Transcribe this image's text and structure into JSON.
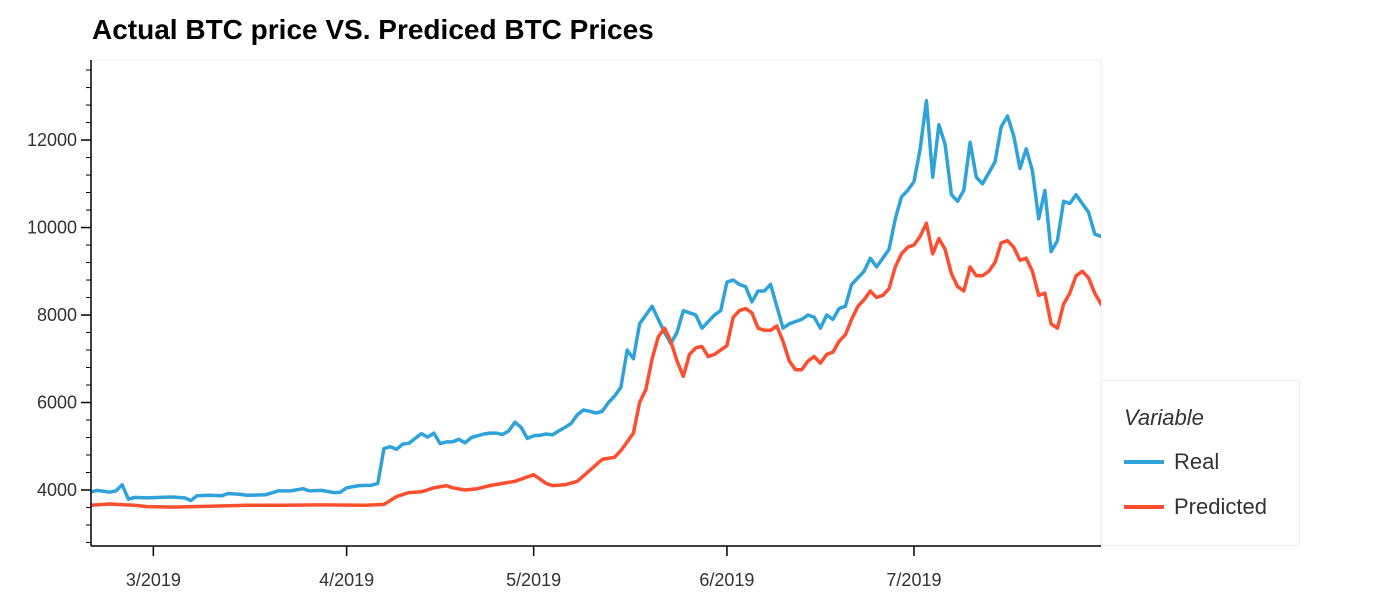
{
  "chart_data": {
    "type": "line",
    "title": "Actual BTC price VS. Prediced BTC Prices",
    "xlabel": "",
    "ylabel": "",
    "x_range": [
      "2019-02-19",
      "2019-07-31"
    ],
    "ylim": [
      2720,
      13830
    ],
    "y_ticks": [
      4000,
      6000,
      8000,
      10000,
      12000
    ],
    "x_ticks": [
      {
        "date": "2019-03-01",
        "label": "3/2019"
      },
      {
        "date": "2019-04-01",
        "label": "4/2019"
      },
      {
        "date": "2019-05-01",
        "label": "5/2019"
      },
      {
        "date": "2019-06-01",
        "label": "6/2019"
      },
      {
        "date": "2019-07-01",
        "label": "7/2019"
      }
    ],
    "grid": false,
    "legend_position": "right",
    "legend_title": "Variable",
    "series": [
      {
        "name": "Real",
        "color": "#30a2da",
        "points": [
          [
            "2019-02-19",
            3960
          ],
          [
            "2019-02-20",
            3990
          ],
          [
            "2019-02-22",
            3950
          ],
          [
            "2019-02-23",
            3980
          ],
          [
            "2019-02-24",
            4120
          ],
          [
            "2019-02-25",
            3790
          ],
          [
            "2019-02-26",
            3830
          ],
          [
            "2019-02-28",
            3820
          ],
          [
            "2019-03-04",
            3840
          ],
          [
            "2019-03-06",
            3820
          ],
          [
            "2019-03-07",
            3760
          ],
          [
            "2019-03-08",
            3870
          ],
          [
            "2019-03-10",
            3880
          ],
          [
            "2019-03-12",
            3870
          ],
          [
            "2019-03-13",
            3920
          ],
          [
            "2019-03-15",
            3900
          ],
          [
            "2019-03-16",
            3880
          ],
          [
            "2019-03-19",
            3890
          ],
          [
            "2019-03-21",
            3980
          ],
          [
            "2019-03-23",
            3980
          ],
          [
            "2019-03-25",
            4030
          ],
          [
            "2019-03-26",
            3980
          ],
          [
            "2019-03-28",
            3990
          ],
          [
            "2019-03-30",
            3940
          ],
          [
            "2019-03-31",
            3950
          ],
          [
            "2019-04-01",
            4050
          ],
          [
            "2019-04-03",
            4100
          ],
          [
            "2019-04-05",
            4110
          ],
          [
            "2019-04-06",
            4150
          ],
          [
            "2019-04-07",
            4950
          ],
          [
            "2019-04-08",
            4990
          ],
          [
            "2019-04-09",
            4930
          ],
          [
            "2019-04-10",
            5050
          ],
          [
            "2019-04-11",
            5070
          ],
          [
            "2019-04-12",
            5180
          ],
          [
            "2019-04-13",
            5290
          ],
          [
            "2019-04-14",
            5210
          ],
          [
            "2019-04-15",
            5300
          ],
          [
            "2019-04-16",
            5060
          ],
          [
            "2019-04-17",
            5100
          ],
          [
            "2019-04-18",
            5100
          ],
          [
            "2019-04-19",
            5160
          ],
          [
            "2019-04-20",
            5080
          ],
          [
            "2019-04-21",
            5200
          ],
          [
            "2019-04-22",
            5240
          ],
          [
            "2019-04-23",
            5280
          ],
          [
            "2019-04-24",
            5300
          ],
          [
            "2019-04-25",
            5300
          ],
          [
            "2019-04-26",
            5270
          ],
          [
            "2019-04-27",
            5350
          ],
          [
            "2019-04-28",
            5550
          ],
          [
            "2019-04-29",
            5430
          ],
          [
            "2019-04-30",
            5180
          ],
          [
            "2019-05-01",
            5240
          ],
          [
            "2019-05-02",
            5250
          ],
          [
            "2019-05-03",
            5280
          ],
          [
            "2019-05-04",
            5260
          ],
          [
            "2019-05-05",
            5350
          ],
          [
            "2019-05-06",
            5430
          ],
          [
            "2019-05-07",
            5520
          ],
          [
            "2019-05-08",
            5720
          ],
          [
            "2019-05-09",
            5830
          ],
          [
            "2019-05-10",
            5800
          ],
          [
            "2019-05-11",
            5760
          ],
          [
            "2019-05-12",
            5800
          ],
          [
            "2019-05-13",
            6000
          ],
          [
            "2019-05-14",
            6150
          ],
          [
            "2019-05-15",
            6350
          ],
          [
            "2019-05-16",
            7200
          ],
          [
            "2019-05-17",
            7000
          ],
          [
            "2019-05-18",
            7800
          ],
          [
            "2019-05-19",
            8000
          ],
          [
            "2019-05-20",
            8200
          ],
          [
            "2019-05-21",
            7900
          ],
          [
            "2019-05-22",
            7600
          ],
          [
            "2019-05-23",
            7350
          ],
          [
            "2019-05-24",
            7600
          ],
          [
            "2019-05-25",
            8100
          ],
          [
            "2019-05-26",
            8050
          ],
          [
            "2019-05-27",
            8000
          ],
          [
            "2019-05-28",
            7700
          ],
          [
            "2019-05-29",
            7850
          ],
          [
            "2019-05-30",
            8000
          ],
          [
            "2019-05-31",
            8100
          ],
          [
            "2019-06-01",
            8750
          ],
          [
            "2019-06-02",
            8800
          ],
          [
            "2019-06-03",
            8700
          ],
          [
            "2019-06-04",
            8650
          ],
          [
            "2019-06-05",
            8300
          ],
          [
            "2019-06-06",
            8550
          ],
          [
            "2019-06-07",
            8550
          ],
          [
            "2019-06-08",
            8700
          ],
          [
            "2019-06-09",
            8200
          ],
          [
            "2019-06-10",
            7700
          ],
          [
            "2019-06-11",
            7800
          ],
          [
            "2019-06-12",
            7850
          ],
          [
            "2019-06-13",
            7900
          ],
          [
            "2019-06-14",
            8000
          ],
          [
            "2019-06-15",
            7950
          ],
          [
            "2019-06-16",
            7700
          ],
          [
            "2019-06-17",
            8000
          ],
          [
            "2019-06-18",
            7900
          ],
          [
            "2019-06-19",
            8150
          ],
          [
            "2019-06-20",
            8200
          ],
          [
            "2019-06-21",
            8700
          ],
          [
            "2019-06-22",
            8850
          ],
          [
            "2019-06-23",
            9000
          ],
          [
            "2019-06-24",
            9300
          ],
          [
            "2019-06-25",
            9100
          ],
          [
            "2019-06-26",
            9300
          ],
          [
            "2019-06-27",
            9500
          ],
          [
            "2019-06-28",
            10200
          ],
          [
            "2019-06-29",
            10700
          ],
          [
            "2019-06-30",
            10850
          ],
          [
            "2019-07-01",
            11050
          ],
          [
            "2019-07-02",
            11800
          ],
          [
            "2019-07-03",
            12900
          ],
          [
            "2019-07-04",
            11150
          ],
          [
            "2019-07-05",
            12350
          ],
          [
            "2019-07-06",
            11900
          ],
          [
            "2019-07-07",
            10750
          ],
          [
            "2019-07-08",
            10600
          ],
          [
            "2019-07-09",
            10850
          ],
          [
            "2019-07-10",
            11950
          ],
          [
            "2019-07-11",
            11150
          ],
          [
            "2019-07-12",
            11000
          ],
          [
            "2019-07-13",
            11250
          ],
          [
            "2019-07-14",
            11500
          ],
          [
            "2019-07-15",
            12300
          ],
          [
            "2019-07-16",
            12550
          ],
          [
            "2019-07-17",
            12100
          ],
          [
            "2019-07-18",
            11350
          ],
          [
            "2019-07-19",
            11800
          ],
          [
            "2019-07-20",
            11300
          ],
          [
            "2019-07-21",
            10200
          ],
          [
            "2019-07-22",
            10850
          ],
          [
            "2019-07-23",
            9450
          ],
          [
            "2019-07-24",
            9700
          ],
          [
            "2019-07-25",
            10600
          ],
          [
            "2019-07-26",
            10550
          ],
          [
            "2019-07-27",
            10750
          ],
          [
            "2019-07-28",
            10550
          ],
          [
            "2019-07-29",
            10350
          ],
          [
            "2019-07-30",
            9850
          ],
          [
            "2019-07-31",
            9800
          ],
          [
            "2019-08-01",
            9900
          ],
          [
            "2019-08-02",
            9850
          ],
          [
            "2019-08-03",
            9500
          ],
          [
            "2019-08-04",
            9550
          ]
        ]
      },
      {
        "name": "Predicted",
        "color": "#fc4f30",
        "points": [
          [
            "2019-02-19",
            3650
          ],
          [
            "2019-02-22",
            3680
          ],
          [
            "2019-02-26",
            3650
          ],
          [
            "2019-02-28",
            3620
          ],
          [
            "2019-03-04",
            3610
          ],
          [
            "2019-03-10",
            3630
          ],
          [
            "2019-03-16",
            3650
          ],
          [
            "2019-03-22",
            3650
          ],
          [
            "2019-03-28",
            3660
          ],
          [
            "2019-04-04",
            3650
          ],
          [
            "2019-04-07",
            3670
          ],
          [
            "2019-04-09",
            3850
          ],
          [
            "2019-04-11",
            3940
          ],
          [
            "2019-04-13",
            3960
          ],
          [
            "2019-04-15",
            4050
          ],
          [
            "2019-04-17",
            4100
          ],
          [
            "2019-04-18",
            4050
          ],
          [
            "2019-04-20",
            4000
          ],
          [
            "2019-04-22",
            4030
          ],
          [
            "2019-04-24",
            4100
          ],
          [
            "2019-04-26",
            4150
          ],
          [
            "2019-04-28",
            4200
          ],
          [
            "2019-04-30",
            4300
          ],
          [
            "2019-05-01",
            4350
          ],
          [
            "2019-05-03",
            4150
          ],
          [
            "2019-05-04",
            4100
          ],
          [
            "2019-05-06",
            4120
          ],
          [
            "2019-05-08",
            4200
          ],
          [
            "2019-05-10",
            4450
          ],
          [
            "2019-05-12",
            4700
          ],
          [
            "2019-05-14",
            4750
          ],
          [
            "2019-05-15",
            4900
          ],
          [
            "2019-05-16",
            5100
          ],
          [
            "2019-05-17",
            5300
          ],
          [
            "2019-05-18",
            6000
          ],
          [
            "2019-05-19",
            6300
          ],
          [
            "2019-05-20",
            7000
          ],
          [
            "2019-05-21",
            7500
          ],
          [
            "2019-05-22",
            7700
          ],
          [
            "2019-05-23",
            7400
          ],
          [
            "2019-05-24",
            6950
          ],
          [
            "2019-05-25",
            6600
          ],
          [
            "2019-05-26",
            7100
          ],
          [
            "2019-05-27",
            7250
          ],
          [
            "2019-05-28",
            7280
          ],
          [
            "2019-05-29",
            7050
          ],
          [
            "2019-05-30",
            7100
          ],
          [
            "2019-05-31",
            7200
          ],
          [
            "2019-06-01",
            7300
          ],
          [
            "2019-06-02",
            7950
          ],
          [
            "2019-06-03",
            8100
          ],
          [
            "2019-06-04",
            8150
          ],
          [
            "2019-06-05",
            8050
          ],
          [
            "2019-06-06",
            7700
          ],
          [
            "2019-06-07",
            7650
          ],
          [
            "2019-06-08",
            7650
          ],
          [
            "2019-06-09",
            7750
          ],
          [
            "2019-06-10",
            7400
          ],
          [
            "2019-06-11",
            6950
          ],
          [
            "2019-06-12",
            6750
          ],
          [
            "2019-06-13",
            6750
          ],
          [
            "2019-06-14",
            6950
          ],
          [
            "2019-06-15",
            7050
          ],
          [
            "2019-06-16",
            6900
          ],
          [
            "2019-06-17",
            7100
          ],
          [
            "2019-06-18",
            7150
          ],
          [
            "2019-06-19",
            7400
          ],
          [
            "2019-06-20",
            7550
          ],
          [
            "2019-06-21",
            7900
          ],
          [
            "2019-06-22",
            8200
          ],
          [
            "2019-06-23",
            8350
          ],
          [
            "2019-06-24",
            8550
          ],
          [
            "2019-06-25",
            8400
          ],
          [
            "2019-06-26",
            8450
          ],
          [
            "2019-06-27",
            8600
          ],
          [
            "2019-06-28",
            9100
          ],
          [
            "2019-06-29",
            9400
          ],
          [
            "2019-06-30",
            9550
          ],
          [
            "2019-07-01",
            9600
          ],
          [
            "2019-07-02",
            9800
          ],
          [
            "2019-07-03",
            10100
          ],
          [
            "2019-07-04",
            9400
          ],
          [
            "2019-07-05",
            9750
          ],
          [
            "2019-07-06",
            9500
          ],
          [
            "2019-07-07",
            8950
          ],
          [
            "2019-07-08",
            8650
          ],
          [
            "2019-07-09",
            8550
          ],
          [
            "2019-07-10",
            9100
          ],
          [
            "2019-07-11",
            8900
          ],
          [
            "2019-07-12",
            8900
          ],
          [
            "2019-07-13",
            9000
          ],
          [
            "2019-07-14",
            9200
          ],
          [
            "2019-07-15",
            9650
          ],
          [
            "2019-07-16",
            9700
          ],
          [
            "2019-07-17",
            9550
          ],
          [
            "2019-07-18",
            9250
          ],
          [
            "2019-07-19",
            9300
          ],
          [
            "2019-07-20",
            9000
          ],
          [
            "2019-07-21",
            8450
          ],
          [
            "2019-07-22",
            8500
          ],
          [
            "2019-07-23",
            7800
          ],
          [
            "2019-07-24",
            7700
          ],
          [
            "2019-07-25",
            8250
          ],
          [
            "2019-07-26",
            8500
          ],
          [
            "2019-07-27",
            8900
          ],
          [
            "2019-07-28",
            9000
          ],
          [
            "2019-07-29",
            8850
          ],
          [
            "2019-07-30",
            8500
          ],
          [
            "2019-07-31",
            8250
          ],
          [
            "2019-08-01",
            8150
          ],
          [
            "2019-08-02",
            8150
          ],
          [
            "2019-08-03",
            8000
          ]
        ]
      }
    ]
  }
}
